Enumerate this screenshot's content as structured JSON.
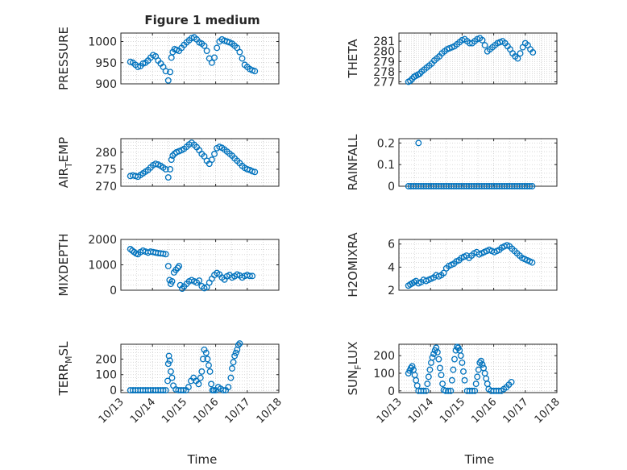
{
  "figure_title": "Figure 1 medium",
  "colors": {
    "marker": "#0072BD",
    "axes": "#262626",
    "grid": "#c8c8c8"
  },
  "chart_data": [
    {
      "type": "scatter",
      "ylabel_parts": [
        "PRESSURE"
      ],
      "ylim": [
        900,
        1020
      ],
      "yticks": [
        900,
        950,
        1000
      ],
      "ytick_labels": [
        "900",
        "950",
        "1000"
      ],
      "xlim": [
        0,
        5
      ],
      "xticks": [
        0,
        1,
        2,
        3,
        4,
        5
      ],
      "xtick_labels": [],
      "grid": true,
      "x": [
        0.3,
        0.38,
        0.46,
        0.54,
        0.62,
        0.7,
        0.78,
        0.86,
        0.94,
        1.02,
        1.1,
        1.18,
        1.26,
        1.34,
        1.42,
        1.5,
        1.56,
        1.6,
        1.64,
        1.7,
        1.76,
        1.84,
        1.92,
        2.0,
        2.08,
        2.16,
        2.24,
        2.32,
        2.4,
        2.48,
        2.56,
        2.64,
        2.72,
        2.8,
        2.88,
        2.96,
        3.04,
        3.12,
        3.2,
        3.28,
        3.36,
        3.44,
        3.52,
        3.6,
        3.68,
        3.76,
        3.84,
        3.92,
        4.0,
        4.08,
        4.16,
        4.24
      ],
      "y": [
        952,
        950,
        945,
        940,
        942,
        948,
        950,
        955,
        962,
        968,
        965,
        955,
        948,
        940,
        930,
        908,
        928,
        962,
        975,
        982,
        980,
        978,
        985,
        992,
        998,
        1003,
        1008,
        1010,
        1005,
        998,
        995,
        990,
        978,
        960,
        950,
        962,
        985,
        1000,
        1005,
        1002,
        1000,
        998,
        995,
        990,
        985,
        975,
        960,
        945,
        940,
        935,
        932,
        930
      ]
    },
    {
      "type": "scatter",
      "ylabel_parts": [
        "THETA"
      ],
      "ylim": [
        276.8,
        281.8
      ],
      "yticks": [
        277,
        278,
        279,
        280,
        281
      ],
      "ytick_labels": [
        "277",
        "278",
        "279",
        "280",
        "281"
      ],
      "xlim": [
        0,
        5
      ],
      "xticks": [
        0,
        1,
        2,
        3,
        4,
        5
      ],
      "xtick_labels": [],
      "grid": true,
      "x": [
        0.3,
        0.36,
        0.42,
        0.48,
        0.54,
        0.6,
        0.66,
        0.72,
        0.8,
        0.88,
        0.96,
        1.04,
        1.12,
        1.2,
        1.28,
        1.36,
        1.44,
        1.52,
        1.6,
        1.68,
        1.76,
        1.84,
        1.92,
        2.0,
        2.08,
        2.16,
        2.24,
        2.32,
        2.4,
        2.48,
        2.56,
        2.64,
        2.72,
        2.8,
        2.88,
        2.96,
        3.04,
        3.12,
        3.2,
        3.28,
        3.36,
        3.44,
        3.52,
        3.6,
        3.68,
        3.76,
        3.84,
        3.92,
        4.0,
        4.08,
        4.16,
        4.24
      ],
      "y": [
        277.0,
        277.1,
        277.3,
        277.5,
        277.6,
        277.7,
        277.8,
        278.0,
        278.2,
        278.4,
        278.6,
        278.8,
        279.1,
        279.3,
        279.5,
        279.8,
        280.0,
        280.2,
        280.3,
        280.4,
        280.5,
        280.7,
        280.9,
        281.1,
        281.2,
        281.0,
        280.8,
        280.8,
        281.0,
        281.2,
        281.3,
        281.1,
        280.6,
        280.0,
        280.2,
        280.4,
        280.6,
        280.8,
        280.9,
        281.0,
        280.8,
        280.5,
        280.2,
        279.8,
        279.5,
        279.3,
        279.8,
        280.4,
        280.8,
        280.6,
        280.2,
        279.9
      ]
    },
    {
      "type": "scatter",
      "ylabel_parts": [
        "AIR",
        "T",
        "EMP"
      ],
      "ylim": [
        270,
        284
      ],
      "yticks": [
        270,
        275,
        280
      ],
      "ytick_labels": [
        "270",
        "275",
        "280"
      ],
      "xlim": [
        0,
        5
      ],
      "xticks": [
        0,
        1,
        2,
        3,
        4,
        5
      ],
      "xtick_labels": [],
      "grid": true,
      "x": [
        0.3,
        0.38,
        0.46,
        0.54,
        0.62,
        0.7,
        0.78,
        0.86,
        0.94,
        1.02,
        1.1,
        1.18,
        1.26,
        1.34,
        1.42,
        1.5,
        1.56,
        1.6,
        1.64,
        1.7,
        1.76,
        1.84,
        1.92,
        2.0,
        2.08,
        2.16,
        2.24,
        2.32,
        2.4,
        2.48,
        2.56,
        2.64,
        2.72,
        2.8,
        2.88,
        2.96,
        3.04,
        3.12,
        3.2,
        3.28,
        3.36,
        3.44,
        3.52,
        3.6,
        3.68,
        3.76,
        3.84,
        3.92,
        4.0,
        4.08,
        4.16,
        4.24
      ],
      "y": [
        273.0,
        273.2,
        273.0,
        272.8,
        273.3,
        273.8,
        274.3,
        274.8,
        275.5,
        276.2,
        276.6,
        276.4,
        276.0,
        275.5,
        275.0,
        272.6,
        275.0,
        277.8,
        279.0,
        279.6,
        280.0,
        280.3,
        280.6,
        281.0,
        281.6,
        282.3,
        282.8,
        282.2,
        281.5,
        280.6,
        279.5,
        278.8,
        277.5,
        276.6,
        277.8,
        279.5,
        281.2,
        281.6,
        281.3,
        280.8,
        280.2,
        279.6,
        279.0,
        278.2,
        277.5,
        276.8,
        276.0,
        275.4,
        275.0,
        274.8,
        274.4,
        274.2
      ]
    },
    {
      "type": "scatter",
      "ylabel_parts": [
        "RAINFALL"
      ],
      "ylim": [
        0,
        0.22
      ],
      "yticks": [
        0,
        0.1,
        0.2
      ],
      "ytick_labels": [
        "0",
        "0.1",
        "0.2"
      ],
      "xlim": [
        0,
        5
      ],
      "xticks": [
        0,
        1,
        2,
        3,
        4,
        5
      ],
      "xtick_labels": [],
      "grid": true,
      "x": [
        0.3,
        0.38,
        0.46,
        0.54,
        0.62,
        0.7,
        0.78,
        0.86,
        0.94,
        1.02,
        1.1,
        1.18,
        1.26,
        1.34,
        1.42,
        1.5,
        1.58,
        1.66,
        1.74,
        1.82,
        1.9,
        1.98,
        2.06,
        2.14,
        2.22,
        2.3,
        2.38,
        2.46,
        2.54,
        2.62,
        2.7,
        2.78,
        2.86,
        2.94,
        3.02,
        3.1,
        3.18,
        3.26,
        3.34,
        3.42,
        3.5,
        3.58,
        3.66,
        3.74,
        3.82,
        3.9,
        3.98,
        4.06,
        4.14,
        4.22,
        0.62
      ],
      "y": [
        0,
        0,
        0,
        0,
        0,
        0,
        0,
        0,
        0,
        0,
        0,
        0,
        0,
        0,
        0,
        0,
        0,
        0,
        0,
        0,
        0,
        0,
        0,
        0,
        0,
        0,
        0,
        0,
        0,
        0,
        0,
        0,
        0,
        0,
        0,
        0,
        0,
        0,
        0,
        0,
        0,
        0,
        0,
        0,
        0,
        0,
        0,
        0,
        0,
        0,
        0.2
      ]
    },
    {
      "type": "scatter",
      "ylabel_parts": [
        "MIXDEPTH"
      ],
      "ylim": [
        0,
        2000
      ],
      "yticks": [
        0,
        1000,
        2000
      ],
      "ytick_labels": [
        "0",
        "1000",
        "2000"
      ],
      "xlim": [
        0,
        5
      ],
      "xticks": [
        0,
        1,
        2,
        3,
        4,
        5
      ],
      "xtick_labels": [],
      "grid": true,
      "x": [
        0.3,
        0.36,
        0.42,
        0.48,
        0.54,
        0.62,
        0.7,
        0.78,
        0.86,
        0.94,
        1.02,
        1.1,
        1.18,
        1.26,
        1.34,
        1.42,
        1.5,
        1.54,
        1.58,
        1.62,
        1.68,
        1.74,
        1.8,
        1.84,
        1.88,
        1.94,
        2.0,
        2.08,
        2.16,
        2.24,
        2.32,
        2.4,
        2.48,
        2.56,
        2.64,
        2.72,
        2.8,
        2.88,
        2.96,
        3.04,
        3.12,
        3.2,
        3.28,
        3.36,
        3.44,
        3.52,
        3.6,
        3.68,
        3.76,
        3.84,
        3.92,
        4.0,
        4.08,
        4.16
      ],
      "y": [
        1620,
        1560,
        1500,
        1450,
        1420,
        1500,
        1560,
        1520,
        1480,
        1520,
        1500,
        1480,
        1460,
        1450,
        1440,
        1420,
        950,
        400,
        250,
        350,
        700,
        800,
        880,
        950,
        200,
        60,
        150,
        250,
        350,
        400,
        350,
        300,
        380,
        160,
        80,
        120,
        300,
        450,
        600,
        680,
        620,
        500,
        420,
        550,
        600,
        500,
        550,
        620,
        580,
        500,
        560,
        600,
        560,
        560
      ]
    },
    {
      "type": "scatter",
      "ylabel_parts": [
        "H2OMIXRA"
      ],
      "ylim": [
        2,
        6.4
      ],
      "yticks": [
        2,
        4,
        6
      ],
      "ytick_labels": [
        "2",
        "4",
        "6"
      ],
      "xlim": [
        0,
        5
      ],
      "xticks": [
        0,
        1,
        2,
        3,
        4,
        5
      ],
      "xtick_labels": [],
      "grid": true,
      "x": [
        0.3,
        0.36,
        0.42,
        0.48,
        0.54,
        0.62,
        0.7,
        0.78,
        0.86,
        0.94,
        1.02,
        1.1,
        1.18,
        1.26,
        1.34,
        1.42,
        1.5,
        1.58,
        1.66,
        1.74,
        1.82,
        1.9,
        1.98,
        2.06,
        2.14,
        2.22,
        2.3,
        2.38,
        2.46,
        2.54,
        2.62,
        2.7,
        2.78,
        2.86,
        2.94,
        3.02,
        3.1,
        3.18,
        3.26,
        3.34,
        3.42,
        3.5,
        3.58,
        3.66,
        3.74,
        3.82,
        3.9,
        3.98,
        4.06,
        4.14,
        4.22
      ],
      "y": [
        2.4,
        2.5,
        2.6,
        2.7,
        2.8,
        2.6,
        2.7,
        2.9,
        2.8,
        2.9,
        3.0,
        3.1,
        3.3,
        3.2,
        3.3,
        3.5,
        3.9,
        4.1,
        4.2,
        4.3,
        4.5,
        4.6,
        4.8,
        4.9,
        5.0,
        4.8,
        5.0,
        5.2,
        5.3,
        5.1,
        5.2,
        5.3,
        5.4,
        5.5,
        5.4,
        5.3,
        5.4,
        5.5,
        5.7,
        5.8,
        5.9,
        5.8,
        5.6,
        5.4,
        5.2,
        5.0,
        4.8,
        4.7,
        4.6,
        4.5,
        4.4
      ]
    },
    {
      "type": "scatter",
      "ylabel_parts": [
        "TERR",
        "M",
        "SL"
      ],
      "ylim": [
        -15,
        295
      ],
      "yticks": [
        0,
        100,
        200
      ],
      "ytick_labels": [
        "0",
        "100",
        "200"
      ],
      "xlim": [
        0,
        5
      ],
      "xticks": [
        0,
        1,
        2,
        3,
        4,
        5
      ],
      "xtick_labels": [
        "10/13",
        "10/14",
        "10/15",
        "10/16",
        "10/17",
        "10/18"
      ],
      "grid": true,
      "x": [
        0.3,
        0.38,
        0.46,
        0.54,
        0.62,
        0.7,
        0.78,
        0.86,
        0.94,
        1.02,
        1.1,
        1.18,
        1.26,
        1.34,
        1.42,
        1.48,
        1.5,
        1.52,
        1.55,
        1.58,
        1.62,
        1.66,
        1.74,
        1.82,
        1.9,
        1.98,
        2.06,
        2.14,
        2.22,
        2.3,
        2.38,
        2.46,
        2.52,
        2.56,
        2.6,
        2.64,
        2.7,
        2.74,
        2.78,
        2.82,
        2.86,
        2.9,
        2.94,
        3.0,
        3.08,
        3.16,
        3.24,
        3.32,
        3.4,
        3.48,
        3.52,
        3.56,
        3.6,
        3.64,
        3.68,
        3.72,
        3.76
      ],
      "y": [
        0,
        0,
        0,
        0,
        0,
        0,
        0,
        0,
        0,
        0,
        0,
        0,
        0,
        0,
        0,
        60,
        170,
        220,
        190,
        120,
        80,
        30,
        5,
        0,
        0,
        0,
        0,
        20,
        60,
        80,
        60,
        40,
        80,
        120,
        200,
        260,
        240,
        200,
        160,
        120,
        40,
        0,
        0,
        0,
        20,
        10,
        0,
        0,
        20,
        80,
        140,
        180,
        220,
        240,
        260,
        290,
        300
      ]
    },
    {
      "type": "scatter",
      "ylabel_parts": [
        "SUN",
        "F",
        "LUX"
      ],
      "ylim": [
        -10,
        265
      ],
      "yticks": [
        0,
        100,
        200
      ],
      "ytick_labels": [
        "0",
        "100",
        "200"
      ],
      "xlim": [
        0,
        5
      ],
      "xticks": [
        0,
        1,
        2,
        3,
        4,
        5
      ],
      "xtick_labels": [
        "10/13",
        "10/14",
        "10/15",
        "10/16",
        "10/17",
        "10/18"
      ],
      "grid": true,
      "x": [
        0.3,
        0.34,
        0.38,
        0.42,
        0.46,
        0.5,
        0.54,
        0.58,
        0.62,
        0.7,
        0.78,
        0.86,
        0.9,
        0.94,
        0.98,
        1.02,
        1.06,
        1.1,
        1.14,
        1.18,
        1.22,
        1.26,
        1.3,
        1.34,
        1.38,
        1.42,
        1.48,
        1.56,
        1.64,
        1.68,
        1.72,
        1.76,
        1.8,
        1.84,
        1.88,
        1.92,
        1.96,
        2.0,
        2.04,
        2.08,
        2.16,
        2.24,
        2.32,
        2.4,
        2.44,
        2.48,
        2.52,
        2.56,
        2.6,
        2.64,
        2.68,
        2.72,
        2.76,
        2.8,
        2.84,
        2.92,
        3.0,
        3.08,
        3.16,
        3.24,
        3.32,
        3.4,
        3.48,
        3.56
      ],
      "y": [
        100,
        115,
        130,
        140,
        120,
        90,
        60,
        30,
        0,
        0,
        0,
        0,
        40,
        80,
        120,
        160,
        190,
        210,
        230,
        245,
        220,
        180,
        130,
        90,
        40,
        5,
        0,
        0,
        0,
        60,
        120,
        180,
        230,
        250,
        245,
        230,
        200,
        160,
        110,
        60,
        0,
        0,
        0,
        0,
        40,
        80,
        120,
        160,
        170,
        150,
        130,
        100,
        70,
        40,
        10,
        0,
        0,
        0,
        0,
        0,
        10,
        20,
        35,
        50
      ]
    }
  ],
  "xlabels": [
    "Time",
    "Time"
  ]
}
